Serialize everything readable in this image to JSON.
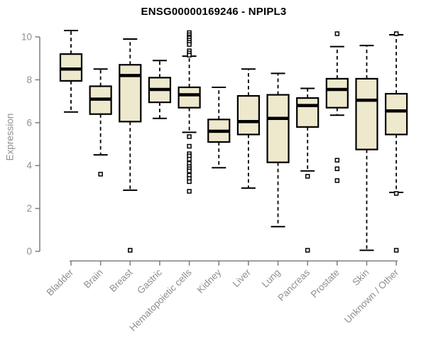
{
  "chart_data": {
    "type": "boxplot",
    "title": "ENSG00000169246 - NPIPL3",
    "ylabel": "Expression",
    "xlabel": "",
    "ylim": [
      0,
      10
    ],
    "yticks": [
      0,
      2,
      4,
      6,
      8,
      10
    ],
    "grid": "off",
    "categories": [
      "Bladder",
      "Brain",
      "Breast",
      "Gastric",
      "Hematopoietic cells",
      "Kidney",
      "Liver",
      "Lung",
      "Pancreas",
      "Prostate",
      "Skin",
      "Unknown / Other"
    ],
    "series": [
      {
        "category": "Bladder",
        "whisker_low": 6.5,
        "q1": 7.95,
        "median": 8.5,
        "q3": 9.2,
        "whisker_high": 10.3,
        "outliers": []
      },
      {
        "category": "Brain",
        "whisker_low": 4.5,
        "q1": 6.4,
        "median": 7.1,
        "q3": 7.7,
        "whisker_high": 8.5,
        "outliers": [
          3.6
        ]
      },
      {
        "category": "Breast",
        "whisker_low": 2.85,
        "q1": 6.05,
        "median": 8.2,
        "q3": 8.7,
        "whisker_high": 9.9,
        "outliers": [
          0.05
        ]
      },
      {
        "category": "Gastric",
        "whisker_low": 6.2,
        "q1": 6.95,
        "median": 7.55,
        "q3": 8.1,
        "whisker_high": 8.9,
        "outliers": []
      },
      {
        "category": "Hematopoietic cells",
        "whisker_low": 5.55,
        "q1": 6.7,
        "median": 7.3,
        "q3": 7.65,
        "whisker_high": 9.1,
        "outliers": [
          10.2,
          10.1,
          10.0,
          9.95,
          9.85,
          9.75,
          9.65,
          9.35,
          9.25,
          9.15,
          5.35,
          4.9,
          4.55,
          4.45,
          4.3,
          4.1,
          3.95,
          3.85,
          3.75,
          3.55,
          3.4,
          3.25,
          2.8
        ]
      },
      {
        "category": "Kidney",
        "whisker_low": 3.9,
        "q1": 5.1,
        "median": 5.6,
        "q3": 6.15,
        "whisker_high": 7.65,
        "outliers": []
      },
      {
        "category": "Liver",
        "whisker_low": 2.95,
        "q1": 5.45,
        "median": 6.05,
        "q3": 7.25,
        "whisker_high": 8.5,
        "outliers": []
      },
      {
        "category": "Lung",
        "whisker_low": 1.15,
        "q1": 4.15,
        "median": 6.2,
        "q3": 7.3,
        "whisker_high": 8.3,
        "outliers": []
      },
      {
        "category": "Pancreas",
        "whisker_low": 3.75,
        "q1": 5.8,
        "median": 6.8,
        "q3": 7.15,
        "whisker_high": 7.6,
        "outliers": [
          3.5,
          0.05
        ]
      },
      {
        "category": "Prostate",
        "whisker_low": 6.35,
        "q1": 6.7,
        "median": 7.55,
        "q3": 8.05,
        "whisker_high": 9.55,
        "outliers": [
          10.15,
          4.25,
          3.85,
          3.3
        ]
      },
      {
        "category": "Skin",
        "whisker_low": 0.05,
        "q1": 4.75,
        "median": 7.05,
        "q3": 8.05,
        "whisker_high": 9.6,
        "outliers": []
      },
      {
        "category": "Unknown / Other",
        "whisker_low": 2.75,
        "q1": 5.45,
        "median": 6.55,
        "q3": 7.35,
        "whisker_high": 10.1,
        "outliers": [
          10.15,
          2.7,
          0.05
        ]
      }
    ],
    "colors": {
      "box_fill": "#EEE8CD",
      "box_border": "#000000",
      "median": "#000000",
      "whisker": "#000000",
      "outlier_fill": "#FFFFFF",
      "axis_line": "#7d7d7d",
      "axis_text": "#8f8f8f",
      "title": "#000000"
    }
  }
}
